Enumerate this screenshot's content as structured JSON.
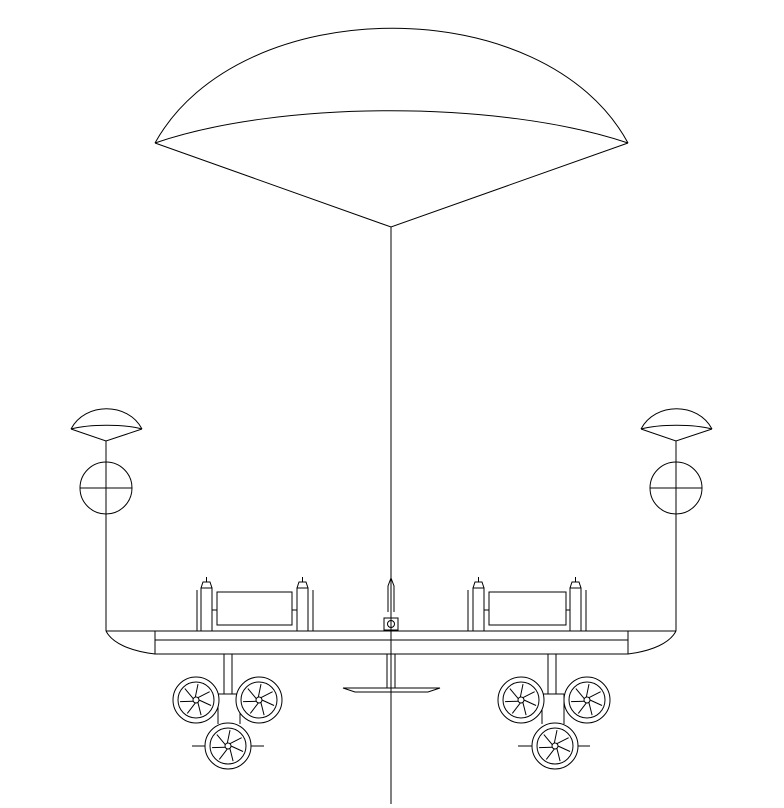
{
  "colors": {
    "ink": "#000000",
    "background": "#ffffff"
  },
  "diagram": {
    "subject": "",
    "parts": {
      "main_canopy": "main-parachute-icon",
      "tether": "tether-line",
      "side_canopies": [
        "left-drogue-parachute-icon",
        "right-drogue-parachute-icon"
      ],
      "side_targets": [
        "left-crosshair-icon",
        "right-crosshair-icon"
      ],
      "deck": "platform-deck",
      "modules": [
        "left-roller-module-icon",
        "right-roller-module-icon"
      ],
      "center_mast": "center-mast-icon",
      "fan_clusters": [
        "left-fan-cluster-icon",
        "right-fan-cluster-icon"
      ],
      "fan_count_per_cluster": 3,
      "fan_blades": 7
    }
  }
}
